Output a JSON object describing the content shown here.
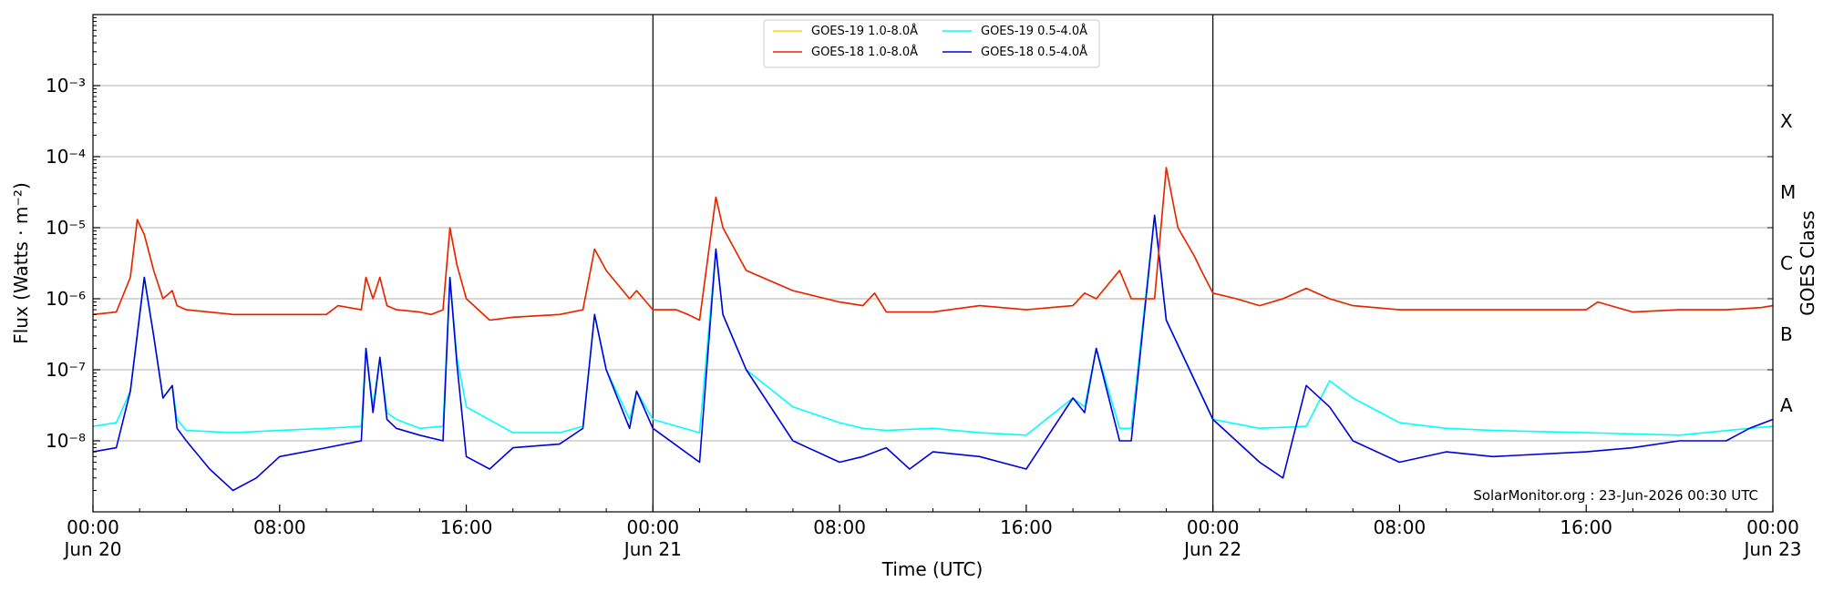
{
  "chart_data": {
    "type": "line",
    "xlabel": "Time (UTC)",
    "ylabel": "Flux (Watts · m⁻²)",
    "ylabel_right": "GOES Class",
    "y_scale": "log",
    "ylim": [
      1e-09,
      0.01
    ],
    "xlim_hours": [
      0,
      72
    ],
    "grid": "horizontal at decades",
    "legend_position": "top-center",
    "credit": "SolarMonitor.org : 23-Jun-2026 00:30 UTC",
    "x_ticks": [
      {
        "hour": 0,
        "time": "00:00",
        "date": "Jun 20"
      },
      {
        "hour": 8,
        "time": "08:00",
        "date": ""
      },
      {
        "hour": 16,
        "time": "16:00",
        "date": ""
      },
      {
        "hour": 24,
        "time": "00:00",
        "date": "Jun 21"
      },
      {
        "hour": 32,
        "time": "08:00",
        "date": ""
      },
      {
        "hour": 40,
        "time": "16:00",
        "date": ""
      },
      {
        "hour": 48,
        "time": "00:00",
        "date": "Jun 22"
      },
      {
        "hour": 56,
        "time": "08:00",
        "date": ""
      },
      {
        "hour": 64,
        "time": "16:00",
        "date": ""
      },
      {
        "hour": 72,
        "time": "00:00",
        "date": "Jun 23"
      }
    ],
    "y_ticks": [
      {
        "exp": -8,
        "label": "10⁻⁸"
      },
      {
        "exp": -7,
        "label": "10⁻⁷"
      },
      {
        "exp": -6,
        "label": "10⁻⁶"
      },
      {
        "exp": -5,
        "label": "10⁻⁵"
      },
      {
        "exp": -4,
        "label": "10⁻⁴"
      },
      {
        "exp": -3,
        "label": "10⁻³"
      }
    ],
    "goes_classes": [
      {
        "label": "A",
        "exp": -7.5
      },
      {
        "label": "B",
        "exp": -6.5
      },
      {
        "label": "C",
        "exp": -5.5
      },
      {
        "label": "M",
        "exp": -4.5
      },
      {
        "label": "X",
        "exp": -3.5
      }
    ],
    "day_boundaries_hours": [
      24,
      48
    ],
    "series": [
      {
        "name": "GOES-19 1.0-8.0Å",
        "color": "#ffd700",
        "x": [
          0,
          1,
          1.6,
          1.9,
          2.2,
          2.6,
          3,
          3.4,
          3.6,
          4,
          6,
          8,
          10,
          10.5,
          11.5,
          11.7,
          12,
          12.3,
          12.6,
          13,
          14,
          14.5,
          15,
          15.3,
          15.6,
          16,
          17,
          18,
          20,
          21,
          21.5,
          22,
          23,
          23.3,
          24,
          25,
          25.5,
          26,
          26.7,
          27,
          27.5,
          28,
          30,
          32,
          33,
          33.5,
          34,
          36,
          38,
          40,
          42,
          42.5,
          43,
          44,
          44.5,
          45.5,
          46,
          46.5,
          47.2,
          47.5,
          48,
          49,
          50,
          51,
          52,
          53,
          54,
          56,
          58,
          60,
          62,
          64,
          64.5,
          66,
          68,
          70,
          71.5,
          72
        ],
        "y": [
          6e-07,
          6.5e-07,
          2e-06,
          1.3e-05,
          8e-06,
          2.5e-06,
          1e-06,
          1.3e-06,
          8e-07,
          7e-07,
          6e-07,
          6e-07,
          6e-07,
          8e-07,
          7e-07,
          2e-06,
          1e-06,
          2e-06,
          8e-07,
          7e-07,
          6.5e-07,
          6e-07,
          7e-07,
          1e-05,
          3e-06,
          1e-06,
          5e-07,
          5.5e-07,
          6e-07,
          7e-07,
          5e-06,
          2.5e-06,
          1e-06,
          1.3e-06,
          7e-07,
          7e-07,
          6e-07,
          5e-07,
          2.7e-05,
          1e-05,
          5e-06,
          2.5e-06,
          1.3e-06,
          9e-07,
          8e-07,
          1.2e-06,
          6.5e-07,
          6.5e-07,
          8e-07,
          7e-07,
          8e-07,
          1.2e-06,
          1e-06,
          2.5e-06,
          1e-06,
          1e-06,
          7e-05,
          1e-05,
          4e-06,
          2.5e-06,
          1.2e-06,
          1e-06,
          8e-07,
          1e-06,
          1.4e-06,
          1e-06,
          8e-07,
          7e-07,
          7e-07,
          7e-07,
          7e-07,
          7e-07,
          9e-07,
          6.5e-07,
          7e-07,
          7e-07,
          7.5e-07,
          8e-07
        ]
      },
      {
        "name": "GOES-18 1.0-8.0Å",
        "color": "#e8220a",
        "x": [
          0,
          1,
          1.6,
          1.9,
          2.2,
          2.6,
          3,
          3.4,
          3.6,
          4,
          6,
          8,
          10,
          10.5,
          11.5,
          11.7,
          12,
          12.3,
          12.6,
          13,
          14,
          14.5,
          15,
          15.3,
          15.6,
          16,
          17,
          18,
          20,
          21,
          21.5,
          22,
          23,
          23.3,
          24,
          25,
          25.5,
          26,
          26.7,
          27,
          27.5,
          28,
          30,
          32,
          33,
          33.5,
          34,
          36,
          38,
          40,
          42,
          42.5,
          43,
          44,
          44.5,
          45.5,
          46,
          46.5,
          47.2,
          47.5,
          48,
          49,
          50,
          51,
          52,
          53,
          54,
          56,
          58,
          60,
          62,
          64,
          64.5,
          66,
          68,
          70,
          71.5,
          72
        ],
        "y": [
          6e-07,
          6.5e-07,
          2e-06,
          1.3e-05,
          8e-06,
          2.5e-06,
          1e-06,
          1.3e-06,
          8e-07,
          7e-07,
          6e-07,
          6e-07,
          6e-07,
          8e-07,
          7e-07,
          2e-06,
          1e-06,
          2e-06,
          8e-07,
          7e-07,
          6.5e-07,
          6e-07,
          7e-07,
          1e-05,
          3e-06,
          1e-06,
          5e-07,
          5.5e-07,
          6e-07,
          7e-07,
          5e-06,
          2.5e-06,
          1e-06,
          1.3e-06,
          7e-07,
          7e-07,
          6e-07,
          5e-07,
          2.7e-05,
          1e-05,
          5e-06,
          2.5e-06,
          1.3e-06,
          9e-07,
          8e-07,
          1.2e-06,
          6.5e-07,
          6.5e-07,
          8e-07,
          7e-07,
          8e-07,
          1.2e-06,
          1e-06,
          2.5e-06,
          1e-06,
          1e-06,
          7e-05,
          1e-05,
          4e-06,
          2.5e-06,
          1.2e-06,
          1e-06,
          8e-07,
          1e-06,
          1.4e-06,
          1e-06,
          8e-07,
          7e-07,
          7e-07,
          7e-07,
          7e-07,
          7e-07,
          9e-07,
          6.5e-07,
          7e-07,
          7e-07,
          7.5e-07,
          8e-07
        ]
      },
      {
        "name": "GOES-19 0.5-4.0Å",
        "color": "#00ffff",
        "x": [
          0,
          1,
          1.6,
          2.2,
          2.6,
          3,
          3.4,
          3.6,
          4,
          6,
          8,
          10,
          11.5,
          11.7,
          12,
          12.3,
          12.6,
          13,
          14,
          15,
          15.3,
          15.6,
          16,
          18,
          20,
          21,
          21.5,
          22,
          23,
          23.3,
          24,
          26,
          26.7,
          27,
          28,
          30,
          32,
          33,
          34,
          36,
          38,
          40,
          42,
          42.5,
          43,
          44,
          44.5,
          45.5,
          46,
          47,
          48,
          50,
          52,
          53,
          54,
          56,
          58,
          60,
          64,
          68,
          71,
          72
        ],
        "y": [
          1.6e-08,
          1.8e-08,
          5e-08,
          2e-06,
          3e-07,
          4e-08,
          6e-08,
          2e-08,
          1.4e-08,
          1.3e-08,
          1.4e-08,
          1.5e-08,
          1.6e-08,
          2e-07,
          3e-08,
          1.5e-07,
          2.5e-08,
          2e-08,
          1.5e-08,
          1.6e-08,
          2e-06,
          1.5e-07,
          3e-08,
          1.3e-08,
          1.3e-08,
          1.6e-08,
          6e-07,
          1e-07,
          2e-08,
          5e-08,
          2e-08,
          1.3e-08,
          5e-06,
          6e-07,
          1e-07,
          3e-08,
          1.8e-08,
          1.5e-08,
          1.4e-08,
          1.5e-08,
          1.3e-08,
          1.2e-08,
          4e-08,
          3e-08,
          2e-07,
          1.5e-08,
          1.5e-08,
          1.5e-05,
          5e-07,
          1e-07,
          2e-08,
          1.5e-08,
          1.6e-08,
          7e-08,
          4e-08,
          1.8e-08,
          1.5e-08,
          1.4e-08,
          1.3e-08,
          1.2e-08,
          1.5e-08,
          1.6e-08
        ]
      },
      {
        "name": "GOES-18 0.5-4.0Å",
        "color": "#0000dd",
        "x": [
          0,
          1,
          1.6,
          2.2,
          2.6,
          3,
          3.4,
          3.6,
          4,
          5,
          6,
          7,
          8,
          10,
          11.5,
          11.7,
          12,
          12.3,
          12.6,
          13,
          14,
          15,
          15.3,
          15.6,
          16,
          17,
          18,
          20,
          21,
          21.5,
          22,
          23,
          23.3,
          24,
          26,
          26.7,
          27,
          28,
          30,
          32,
          33,
          34,
          35,
          36,
          38,
          40,
          42,
          42.5,
          43,
          44,
          44.5,
          45.5,
          46,
          47,
          48,
          49,
          50,
          51,
          52,
          53,
          54,
          56,
          58,
          60,
          64,
          66,
          68,
          70,
          71,
          72
        ],
        "y": [
          7e-09,
          8e-09,
          5e-08,
          2e-06,
          3e-07,
          4e-08,
          6e-08,
          1.5e-08,
          1e-08,
          4e-09,
          2e-09,
          3e-09,
          6e-09,
          8e-09,
          1e-08,
          2e-07,
          2.5e-08,
          1.5e-07,
          2e-08,
          1.5e-08,
          1.2e-08,
          1e-08,
          2e-06,
          1.2e-07,
          6e-09,
          4e-09,
          8e-09,
          9e-09,
          1.5e-08,
          6e-07,
          1e-07,
          1.5e-08,
          5e-08,
          1.5e-08,
          5e-09,
          5e-06,
          6e-07,
          1e-07,
          1e-08,
          5e-09,
          6e-09,
          8e-09,
          4e-09,
          7e-09,
          6e-09,
          4e-09,
          4e-08,
          2.5e-08,
          2e-07,
          1e-08,
          1e-08,
          1.5e-05,
          5e-07,
          1e-07,
          2e-08,
          1e-08,
          5e-09,
          3e-09,
          6e-08,
          3e-08,
          1e-08,
          5e-09,
          7e-09,
          6e-09,
          7e-09,
          8e-09,
          1e-08,
          1e-08,
          1.5e-08,
          2e-08
        ]
      }
    ]
  }
}
